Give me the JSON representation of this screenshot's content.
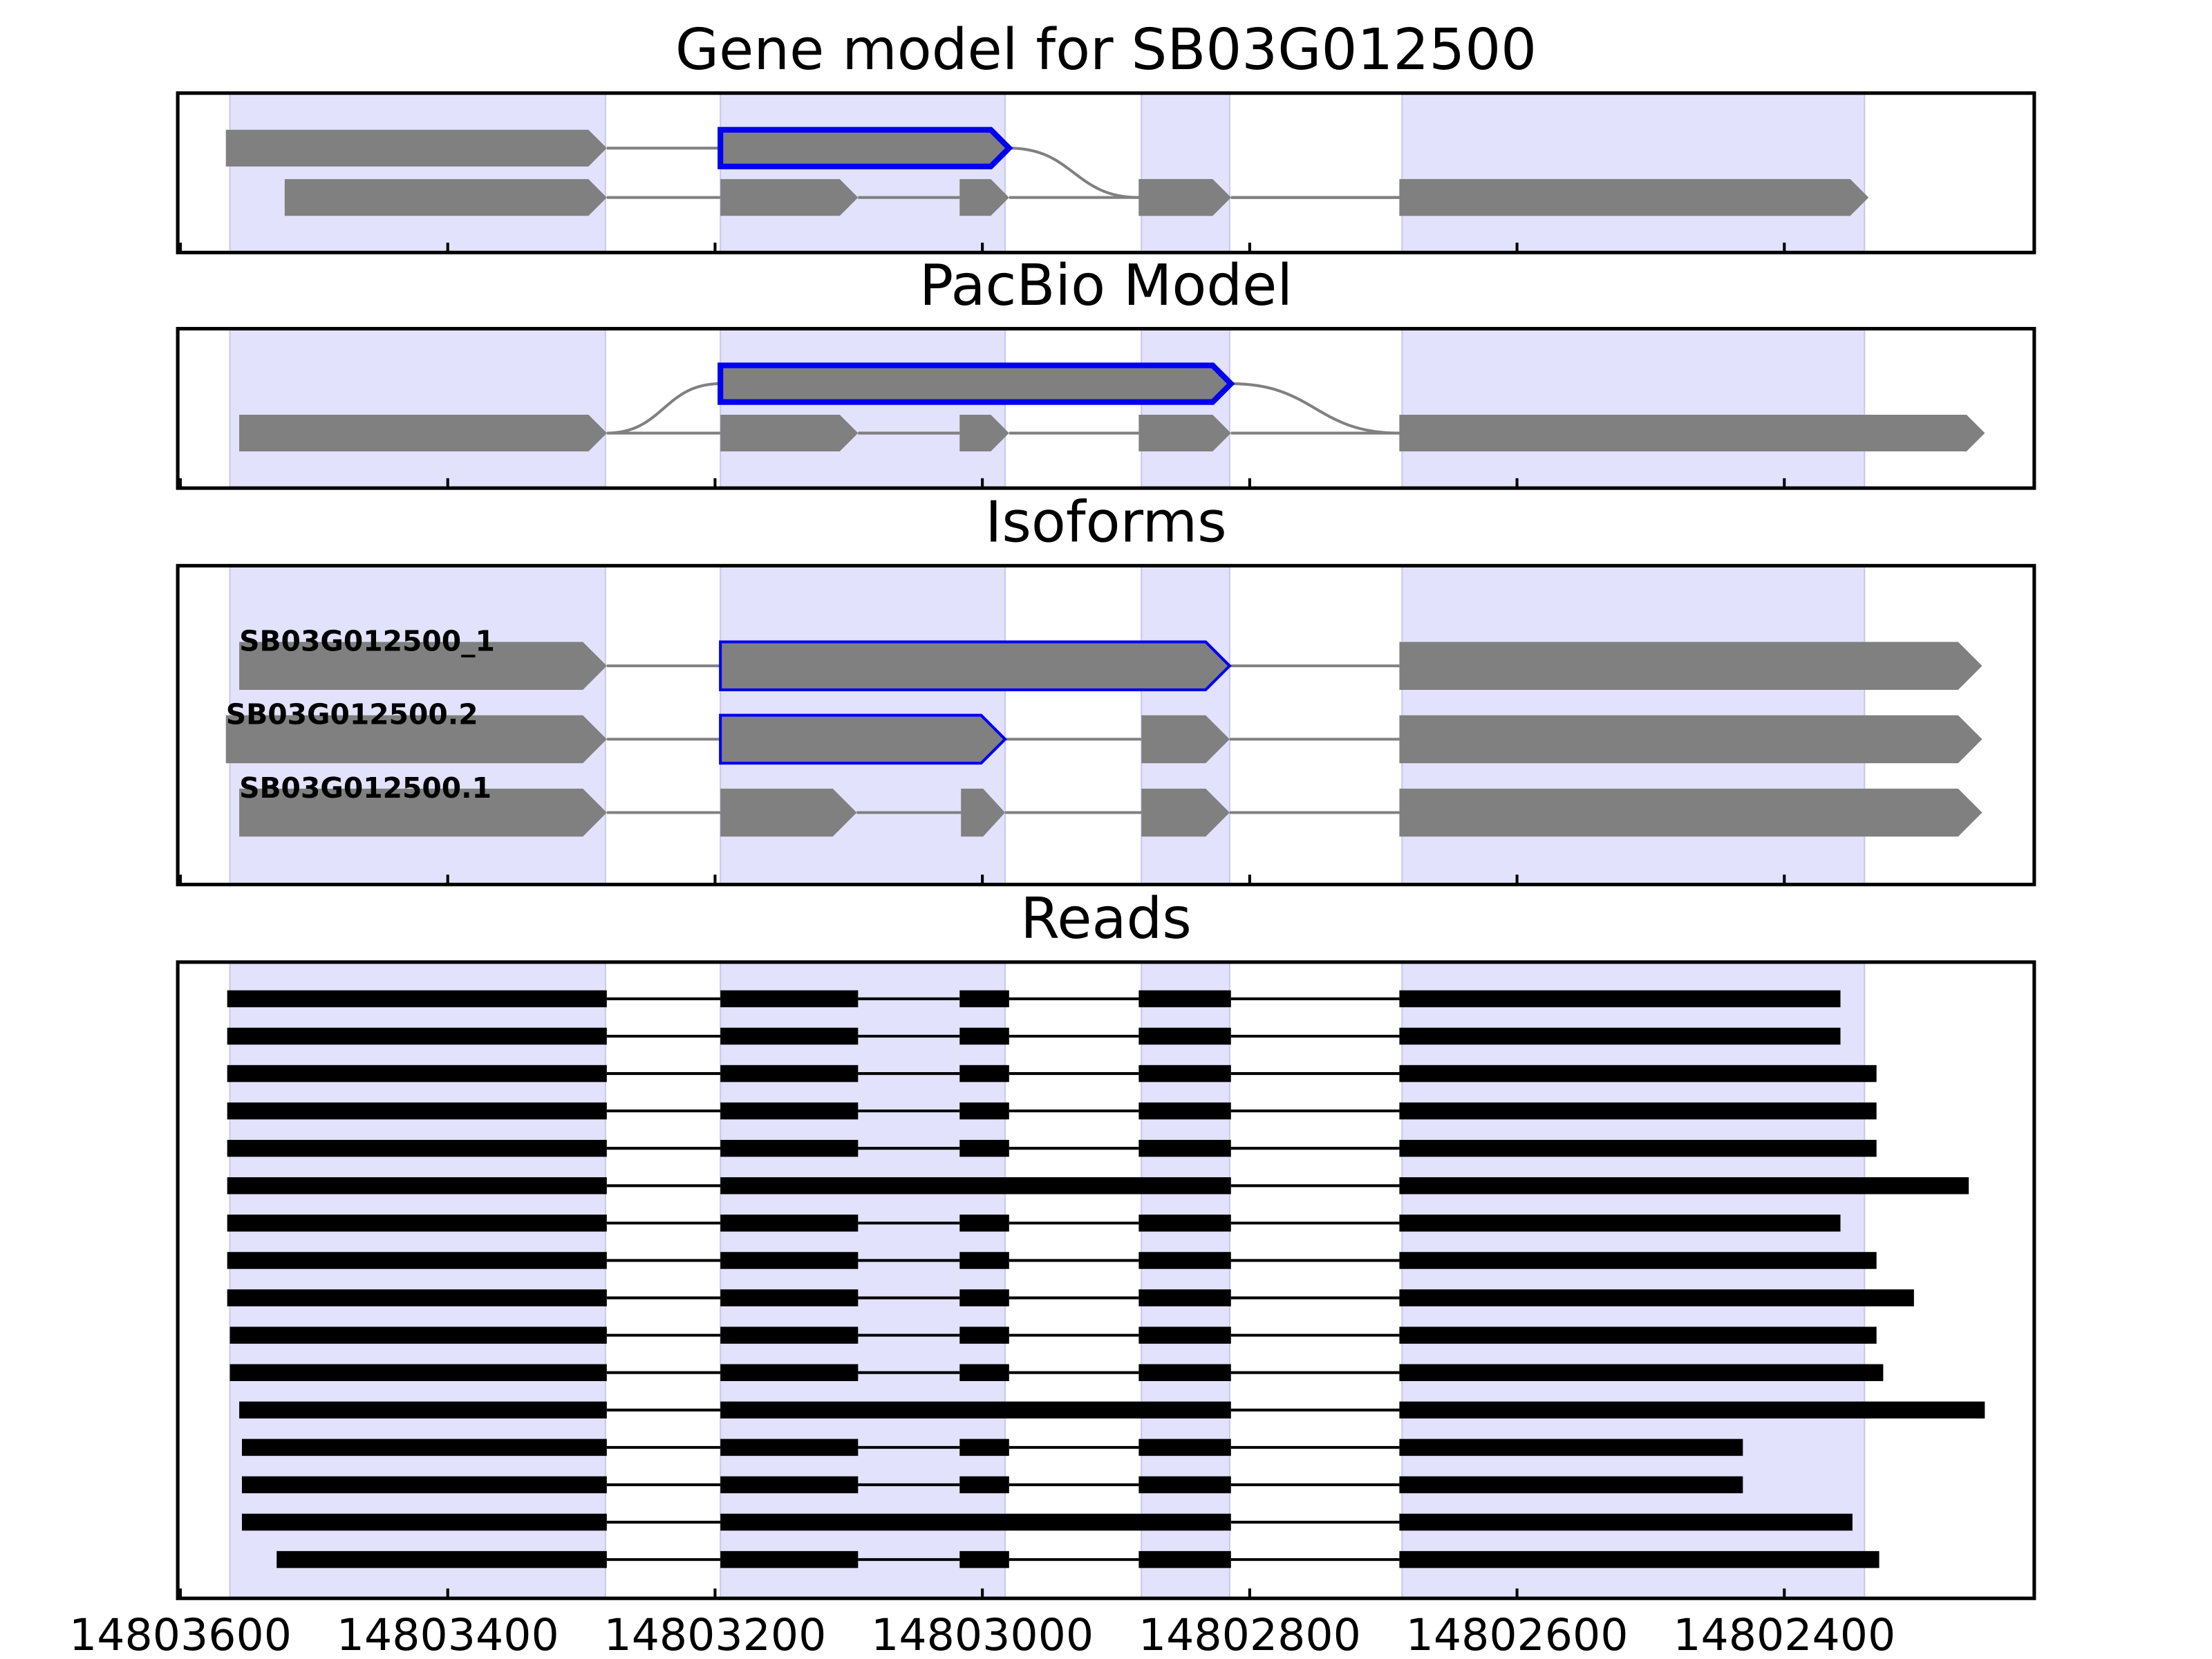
{
  "chart_data": {
    "type": "gene-tracks",
    "xlim": [
      14803602,
      14802213
    ],
    "xticks": [
      14803600,
      14803400,
      14803200,
      14803000,
      14802800,
      14802600,
      14802400
    ],
    "shaded_regions": [
      [
        14803563,
        14803282
      ],
      [
        14803196,
        14802983
      ],
      [
        14802881,
        14802815
      ],
      [
        14802686,
        14802340
      ]
    ],
    "shade_color": "#e2e2fc",
    "exon_color": "#808080",
    "highlight_color": "#0000ee",
    "read_color": "#000000",
    "panels": [
      {
        "type": "transcripts",
        "title": "Gene model for SB03G012500",
        "tracks": [
          {
            "exons": [
              {
                "start": 14803566,
                "end": 14803281,
                "row": 0
              },
              {
                "start": 14803196,
                "end": 14802980,
                "row": 0,
                "highlight": true
              },
              {
                "start": 14802883,
                "end": 14802814,
                "row": 1
              },
              {
                "start": 14802688,
                "end": 14802337,
                "row": 1
              }
            ]
          },
          {
            "exons": [
              {
                "start": 14803522,
                "end": 14803281,
                "row": 1
              },
              {
                "start": 14803196,
                "end": 14803093,
                "row": 1
              },
              {
                "start": 14803017,
                "end": 14802980,
                "row": 1
              },
              {
                "start": 14802883,
                "end": 14802814,
                "row": 1
              },
              {
                "start": 14802688,
                "end": 14802337,
                "row": 1
              }
            ]
          }
        ]
      },
      {
        "type": "transcripts",
        "title": "PacBio Model",
        "tracks": [
          {
            "exons": [
              {
                "start": 14803556,
                "end": 14803281,
                "row": 1
              },
              {
                "start": 14803196,
                "end": 14802814,
                "row": 0,
                "highlight": true
              },
              {
                "start": 14802688,
                "end": 14802250,
                "row": 1
              }
            ]
          },
          {
            "exons": [
              {
                "start": 14803556,
                "end": 14803281,
                "row": 1
              },
              {
                "start": 14803196,
                "end": 14803093,
                "row": 1
              },
              {
                "start": 14803017,
                "end": 14802980,
                "row": 1
              },
              {
                "start": 14802883,
                "end": 14802814,
                "row": 1
              },
              {
                "start": 14802688,
                "end": 14802250,
                "row": 1
              }
            ]
          }
        ]
      },
      {
        "type": "transcripts",
        "title": "Isoforms",
        "tracks": [
          {
            "label": "SB03G012500_1",
            "exons": [
              {
                "start": 14803556,
                "end": 14803281,
                "row": 0
              },
              {
                "start": 14803196,
                "end": 14802815,
                "row": 0,
                "highlight": true
              },
              {
                "start": 14802688,
                "end": 14802252,
                "row": 0
              }
            ]
          },
          {
            "label": "SB03G012500.2",
            "exons": [
              {
                "start": 14803566,
                "end": 14803281,
                "row": 1
              },
              {
                "start": 14803196,
                "end": 14802983,
                "row": 1,
                "highlight": true
              },
              {
                "start": 14802881,
                "end": 14802815,
                "row": 1
              },
              {
                "start": 14802688,
                "end": 14802252,
                "row": 1
              }
            ]
          },
          {
            "label": "SB03G012500.1",
            "exons": [
              {
                "start": 14803556,
                "end": 14803281,
                "row": 2
              },
              {
                "start": 14803196,
                "end": 14803094,
                "row": 2
              },
              {
                "start": 14803016,
                "end": 14802983,
                "row": 2
              },
              {
                "start": 14802881,
                "end": 14802815,
                "row": 2
              },
              {
                "start": 14802688,
                "end": 14802252,
                "row": 2
              }
            ]
          }
        ]
      },
      {
        "type": "reads",
        "title": "Reads",
        "tracks": [
          {
            "exons": [
              [
                14803565,
                14803281
              ],
              [
                14803196,
                14803093
              ],
              [
                14803017,
                14802980
              ],
              [
                14802883,
                14802814
              ],
              [
                14802688,
                14802358
              ]
            ]
          },
          {
            "exons": [
              [
                14803565,
                14803281
              ],
              [
                14803196,
                14803093
              ],
              [
                14803017,
                14802980
              ],
              [
                14802883,
                14802814
              ],
              [
                14802688,
                14802358
              ]
            ]
          },
          {
            "exons": [
              [
                14803565,
                14803281
              ],
              [
                14803196,
                14803093
              ],
              [
                14803017,
                14802980
              ],
              [
                14802883,
                14802814
              ],
              [
                14802688,
                14802331
              ]
            ]
          },
          {
            "exons": [
              [
                14803565,
                14803281
              ],
              [
                14803196,
                14803093
              ],
              [
                14803017,
                14802980
              ],
              [
                14802883,
                14802814
              ],
              [
                14802688,
                14802331
              ]
            ]
          },
          {
            "exons": [
              [
                14803565,
                14803281
              ],
              [
                14803196,
                14803093
              ],
              [
                14803017,
                14802980
              ],
              [
                14802883,
                14802814
              ],
              [
                14802688,
                14802331
              ]
            ]
          },
          {
            "exons": [
              [
                14803565,
                14803281
              ],
              [
                14803196,
                14802814
              ],
              [
                14802688,
                14802262
              ]
            ]
          },
          {
            "exons": [
              [
                14803565,
                14803281
              ],
              [
                14803196,
                14803093
              ],
              [
                14803017,
                14802980
              ],
              [
                14802883,
                14802814
              ],
              [
                14802688,
                14802358
              ]
            ]
          },
          {
            "exons": [
              [
                14803565,
                14803281
              ],
              [
                14803196,
                14803093
              ],
              [
                14803017,
                14802980
              ],
              [
                14802883,
                14802814
              ],
              [
                14802688,
                14802331
              ]
            ]
          },
          {
            "exons": [
              [
                14803565,
                14803281
              ],
              [
                14803196,
                14803093
              ],
              [
                14803017,
                14802980
              ],
              [
                14802883,
                14802814
              ],
              [
                14802688,
                14802303
              ]
            ]
          },
          {
            "exons": [
              [
                14803563,
                14803281
              ],
              [
                14803196,
                14803093
              ],
              [
                14803017,
                14802980
              ],
              [
                14802883,
                14802814
              ],
              [
                14802688,
                14802331
              ]
            ]
          },
          {
            "exons": [
              [
                14803563,
                14803281
              ],
              [
                14803196,
                14803093
              ],
              [
                14803017,
                14802980
              ],
              [
                14802883,
                14802814
              ],
              [
                14802688,
                14802326
              ]
            ]
          },
          {
            "exons": [
              [
                14803556,
                14803281
              ],
              [
                14803196,
                14802814
              ],
              [
                14802688,
                14802250
              ]
            ]
          },
          {
            "exons": [
              [
                14803554,
                14803281
              ],
              [
                14803196,
                14803093
              ],
              [
                14803017,
                14802980
              ],
              [
                14802883,
                14802814
              ],
              [
                14802688,
                14802431
              ]
            ]
          },
          {
            "exons": [
              [
                14803554,
                14803281
              ],
              [
                14803196,
                14803093
              ],
              [
                14803017,
                14802980
              ],
              [
                14802883,
                14802814
              ],
              [
                14802688,
                14802431
              ]
            ]
          },
          {
            "exons": [
              [
                14803554,
                14803281
              ],
              [
                14803196,
                14802814
              ],
              [
                14802688,
                14802349
              ]
            ]
          },
          {
            "exons": [
              [
                14803528,
                14803281
              ],
              [
                14803196,
                14803093
              ],
              [
                14803017,
                14802980
              ],
              [
                14802883,
                14802814
              ],
              [
                14802688,
                14802329
              ]
            ]
          }
        ]
      }
    ]
  }
}
